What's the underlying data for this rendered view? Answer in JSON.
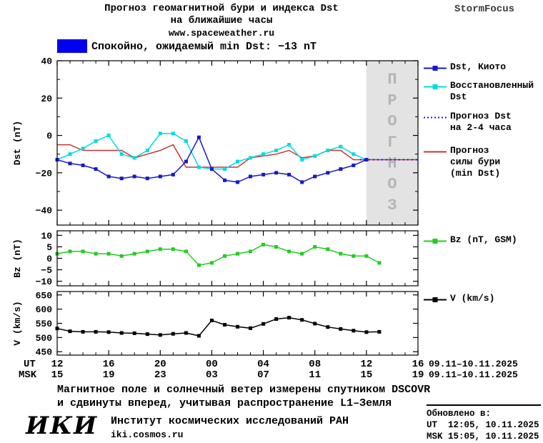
{
  "header": {
    "title_line1": "Прогноз геомагнитной бури и индекса Dst",
    "title_line2": "на ближайшие часы",
    "website": "www.spaceweather.ru",
    "brand": "StormFocus"
  },
  "status_banner": {
    "swatch_color": "#0000ee",
    "text": "Спокойно, ожидаемый min Dst: −13 nT"
  },
  "chart_data": {
    "type": "line",
    "xaxis": {
      "ut_label": "UT",
      "msk_label": "MSK",
      "tick_positions": [
        0,
        4,
        8,
        12,
        16,
        20,
        24,
        28
      ],
      "ut_ticks": [
        "12",
        "16",
        "20",
        "00",
        "04",
        "08",
        "12",
        "16"
      ],
      "msk_ticks": [
        "15",
        "19",
        "23",
        "03",
        "07",
        "11",
        "15",
        "19"
      ],
      "ut_date_range": "09.11–10.11.2025",
      "msk_date_range": "09.11–10.11.2025",
      "x_unit": "hours since 12:00 UT 09.11.2025"
    },
    "panels": [
      {
        "ylabel": "Dst (nT)",
        "ylim": [
          -48,
          40
        ],
        "yticks": [
          40,
          20,
          0,
          -20,
          -40
        ],
        "ytick_minor_step": 10,
        "xlim": [
          0,
          28
        ],
        "forecast_region": {
          "x_start": 24,
          "x_end": 28,
          "label": "ПРОГНОЗ",
          "fill": "#e3e3e3",
          "label_color": "#b5b5b5"
        },
        "series": [
          {
            "id": "storm-forecast",
            "name": "Прогноз силы бури (min Dst)",
            "color": "#cc3333",
            "marker": null,
            "style": "solid",
            "x": [
              0,
              1,
              2,
              3,
              4,
              5,
              6,
              7,
              8,
              9,
              10,
              11,
              12,
              13,
              14,
              15,
              16,
              17,
              18,
              19,
              20,
              21,
              22,
              23,
              24,
              25,
              26,
              27,
              28
            ],
            "y": [
              -5,
              -5,
              -8,
              -8,
              -8,
              -8,
              -12,
              -10,
              -8,
              -5,
              -17,
              -17,
              -17,
              -17,
              -17,
              -12,
              -11,
              -10,
              -8,
              -12,
              -11,
              -8,
              -8,
              -13,
              -13,
              -13,
              -13,
              -13,
              -13
            ]
          },
          {
            "id": "restored-dst",
            "name": "Восстановленный Dst",
            "color": "#00dddd",
            "marker": "square",
            "style": "solid",
            "x": [
              0,
              1,
              2,
              3,
              4,
              5,
              6,
              7,
              8,
              9,
              10,
              11,
              12,
              13,
              14,
              15,
              16,
              17,
              18,
              19,
              20,
              21,
              22,
              23,
              24
            ],
            "y": [
              -13,
              -10,
              -7,
              -3,
              0,
              -10,
              -12,
              -8,
              1,
              1,
              -3,
              -17,
              -18,
              -18,
              -14,
              -12,
              -10,
              -8,
              -5,
              -13,
              -11,
              -8,
              -6,
              -10,
              -13
            ]
          },
          {
            "id": "dst-kyoto",
            "name": "Dst, Киото",
            "color": "#1818cc",
            "marker": "square",
            "style": "solid",
            "x": [
              0,
              1,
              2,
              3,
              4,
              5,
              6,
              7,
              8,
              9,
              10,
              11,
              12,
              13,
              14,
              15,
              16,
              17,
              18,
              19,
              20,
              21,
              22,
              23,
              24
            ],
            "y": [
              -13,
              -15,
              -16,
              -18,
              -22,
              -23,
              -22,
              -23,
              -22,
              -21,
              -14,
              -1,
              -18,
              -24,
              -25,
              -22,
              -21,
              -20,
              -21,
              -25,
              -22,
              -20,
              -18,
              -16,
              -13
            ]
          },
          {
            "id": "forecast-dst",
            "name": "Прогноз Dst на 2-4 часа",
            "color": "#1818cc",
            "marker": null,
            "style": "dotted",
            "x": [
              23.5,
              28
            ],
            "y": [
              -13,
              -13
            ]
          }
        ]
      },
      {
        "ylabel": "Bz (nT)",
        "ylim": [
          -12,
          12
        ],
        "yticks": [
          10,
          5,
          0,
          -5,
          -10
        ],
        "ytick_minor_step": null,
        "xlim": [
          0,
          28
        ],
        "series": [
          {
            "id": "bz",
            "name": "Bz (nT, GSM)",
            "color": "#22cc22",
            "marker": "square",
            "style": "solid",
            "x": [
              0,
              1,
              2,
              3,
              4,
              5,
              6,
              7,
              8,
              9,
              10,
              11,
              12,
              13,
              14,
              15,
              16,
              17,
              18,
              19,
              20,
              21,
              22,
              23,
              24,
              25
            ],
            "y": [
              2,
              3,
              3,
              2,
              2,
              1,
              2,
              3,
              4,
              4,
              3,
              -3,
              -2,
              1,
              2,
              3,
              6,
              5,
              3,
              2,
              5,
              4,
              2,
              1,
              1,
              -2
            ]
          }
        ]
      },
      {
        "ylabel": "V (km/s)",
        "ylim": [
          438,
          662
        ],
        "yticks": [
          650,
          600,
          550,
          500,
          450
        ],
        "ytick_minor_step": null,
        "xlim": [
          0,
          28
        ],
        "series": [
          {
            "id": "v",
            "name": "V (km/s)",
            "color": "#000000",
            "marker": "square",
            "style": "solid",
            "x": [
              0,
              1,
              2,
              3,
              4,
              5,
              6,
              7,
              8,
              9,
              10,
              11,
              12,
              13,
              14,
              15,
              16,
              17,
              18,
              19,
              20,
              21,
              22,
              23,
              24,
              25
            ],
            "y": [
              532,
              522,
              520,
              520,
              519,
              516,
              515,
              512,
              509,
              513,
              516,
              506,
              560,
              545,
              538,
              533,
              548,
              565,
              570,
              562,
              549,
              537,
              530,
              524,
              519,
              520
            ]
          }
        ]
      }
    ],
    "legend": {
      "entries": [
        {
          "id": "dst-kyoto",
          "label": "Dst, Киото",
          "color": "#1818cc",
          "marker": "square-line"
        },
        {
          "id": "restored-dst",
          "label": "Восстановленный\nDst",
          "color": "#00dddd",
          "marker": "square-line"
        },
        {
          "id": "forecast-dst",
          "label": "Прогноз Dst\nна 2-4 часа",
          "color": "#1818cc",
          "marker": "dotted-line"
        },
        {
          "id": "storm-forecast",
          "label": "Прогноз\nсилы бури\n(min Dst)",
          "color": "#cc3333",
          "marker": "line"
        },
        {
          "id": "bz",
          "label": "Bz (nT, GSM)",
          "color": "#22cc22",
          "marker": "square-line"
        },
        {
          "id": "v",
          "label": "V (km/s)",
          "color": "#000000",
          "marker": "square-line"
        }
      ]
    }
  },
  "footer": {
    "note_line1": "Магнитное поле и солнечный ветер измерены спутником DSCOVR",
    "note_line2": "и сдвинуты вперед, учитывая распространение L1–Земля",
    "logo": "ИКИ",
    "institute": "Институт космических исследований РАН",
    "institute_site": "iki.cosmos.ru",
    "updated_label": "Обновлено в:",
    "updated_ut": "UT  12:05, 10.11.2025",
    "updated_msk": "MSK 15:05, 10.11.2025"
  }
}
